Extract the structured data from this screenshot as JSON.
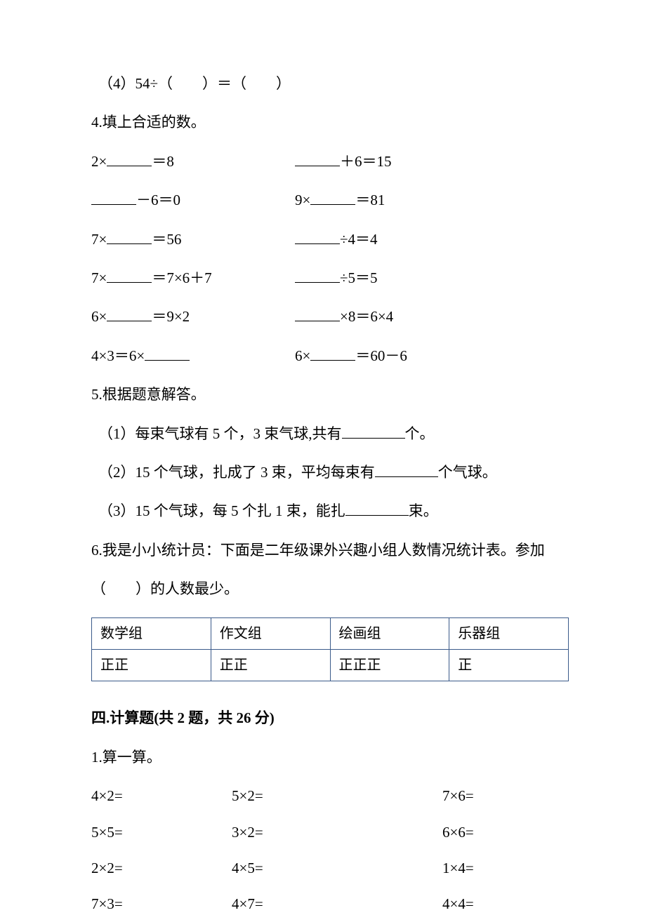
{
  "q3_4": "（4）54÷（　　）＝（　　）",
  "q4_title": "4.填上合适的数。",
  "q4": {
    "r1a": "2×",
    "r1a_tail": "＝8",
    "r1b_tail": "＋6＝15",
    "r2a_tail": "－6＝0",
    "r2b": "9×",
    "r2b_tail": "＝81",
    "r3a": "7×",
    "r3a_tail": "＝56",
    "r3b_tail": "÷4＝4",
    "r4a": "7×",
    "r4a_tail": "＝7×6＋7",
    "r4b_tail": "÷5＝5",
    "r5a": "6×",
    "r5a_tail": "＝9×2",
    "r5b_tail": "×8＝6×4",
    "r6a": "4×3＝6×",
    "r6b": "6×",
    "r6b_tail": "＝60－6"
  },
  "q5_title": "5.根据题意解答。",
  "q5": {
    "p1a": "（1）每束气球有 5 个，3 束气球,共有",
    "p1b": "个。",
    "p2a": "（2）15 个气球，扎成了 3 束，平均每束有",
    "p2b": "个气球。",
    "p3a": "（3）15 个气球，每 5 个扎 1 束，能扎",
    "p3b": "束。"
  },
  "q6_l1": "6.我是小小统计员：下面是二年级课外兴趣小组人数情况统计表。参加",
  "q6_l2": "（　　）的人数最少。",
  "table": {
    "headers": [
      "数学组",
      "作文组",
      "绘画组",
      "乐器组"
    ],
    "tallies": [
      "正正",
      "正正",
      "正正正",
      "正"
    ],
    "border_color": "#3a5a8a"
  },
  "sec4_title": "四.计算题(共 2 题，共 26 分)",
  "calc_title": "1.算一算。",
  "calc": {
    "r1": [
      "4×2=",
      "5×2=",
      "7×6="
    ],
    "r2": [
      "5×5=",
      "3×2=",
      "6×6="
    ],
    "r3": [
      "2×2=",
      "4×5=",
      "1×4="
    ],
    "r4": [
      "7×3=",
      "4×7=",
      "4×4="
    ]
  }
}
